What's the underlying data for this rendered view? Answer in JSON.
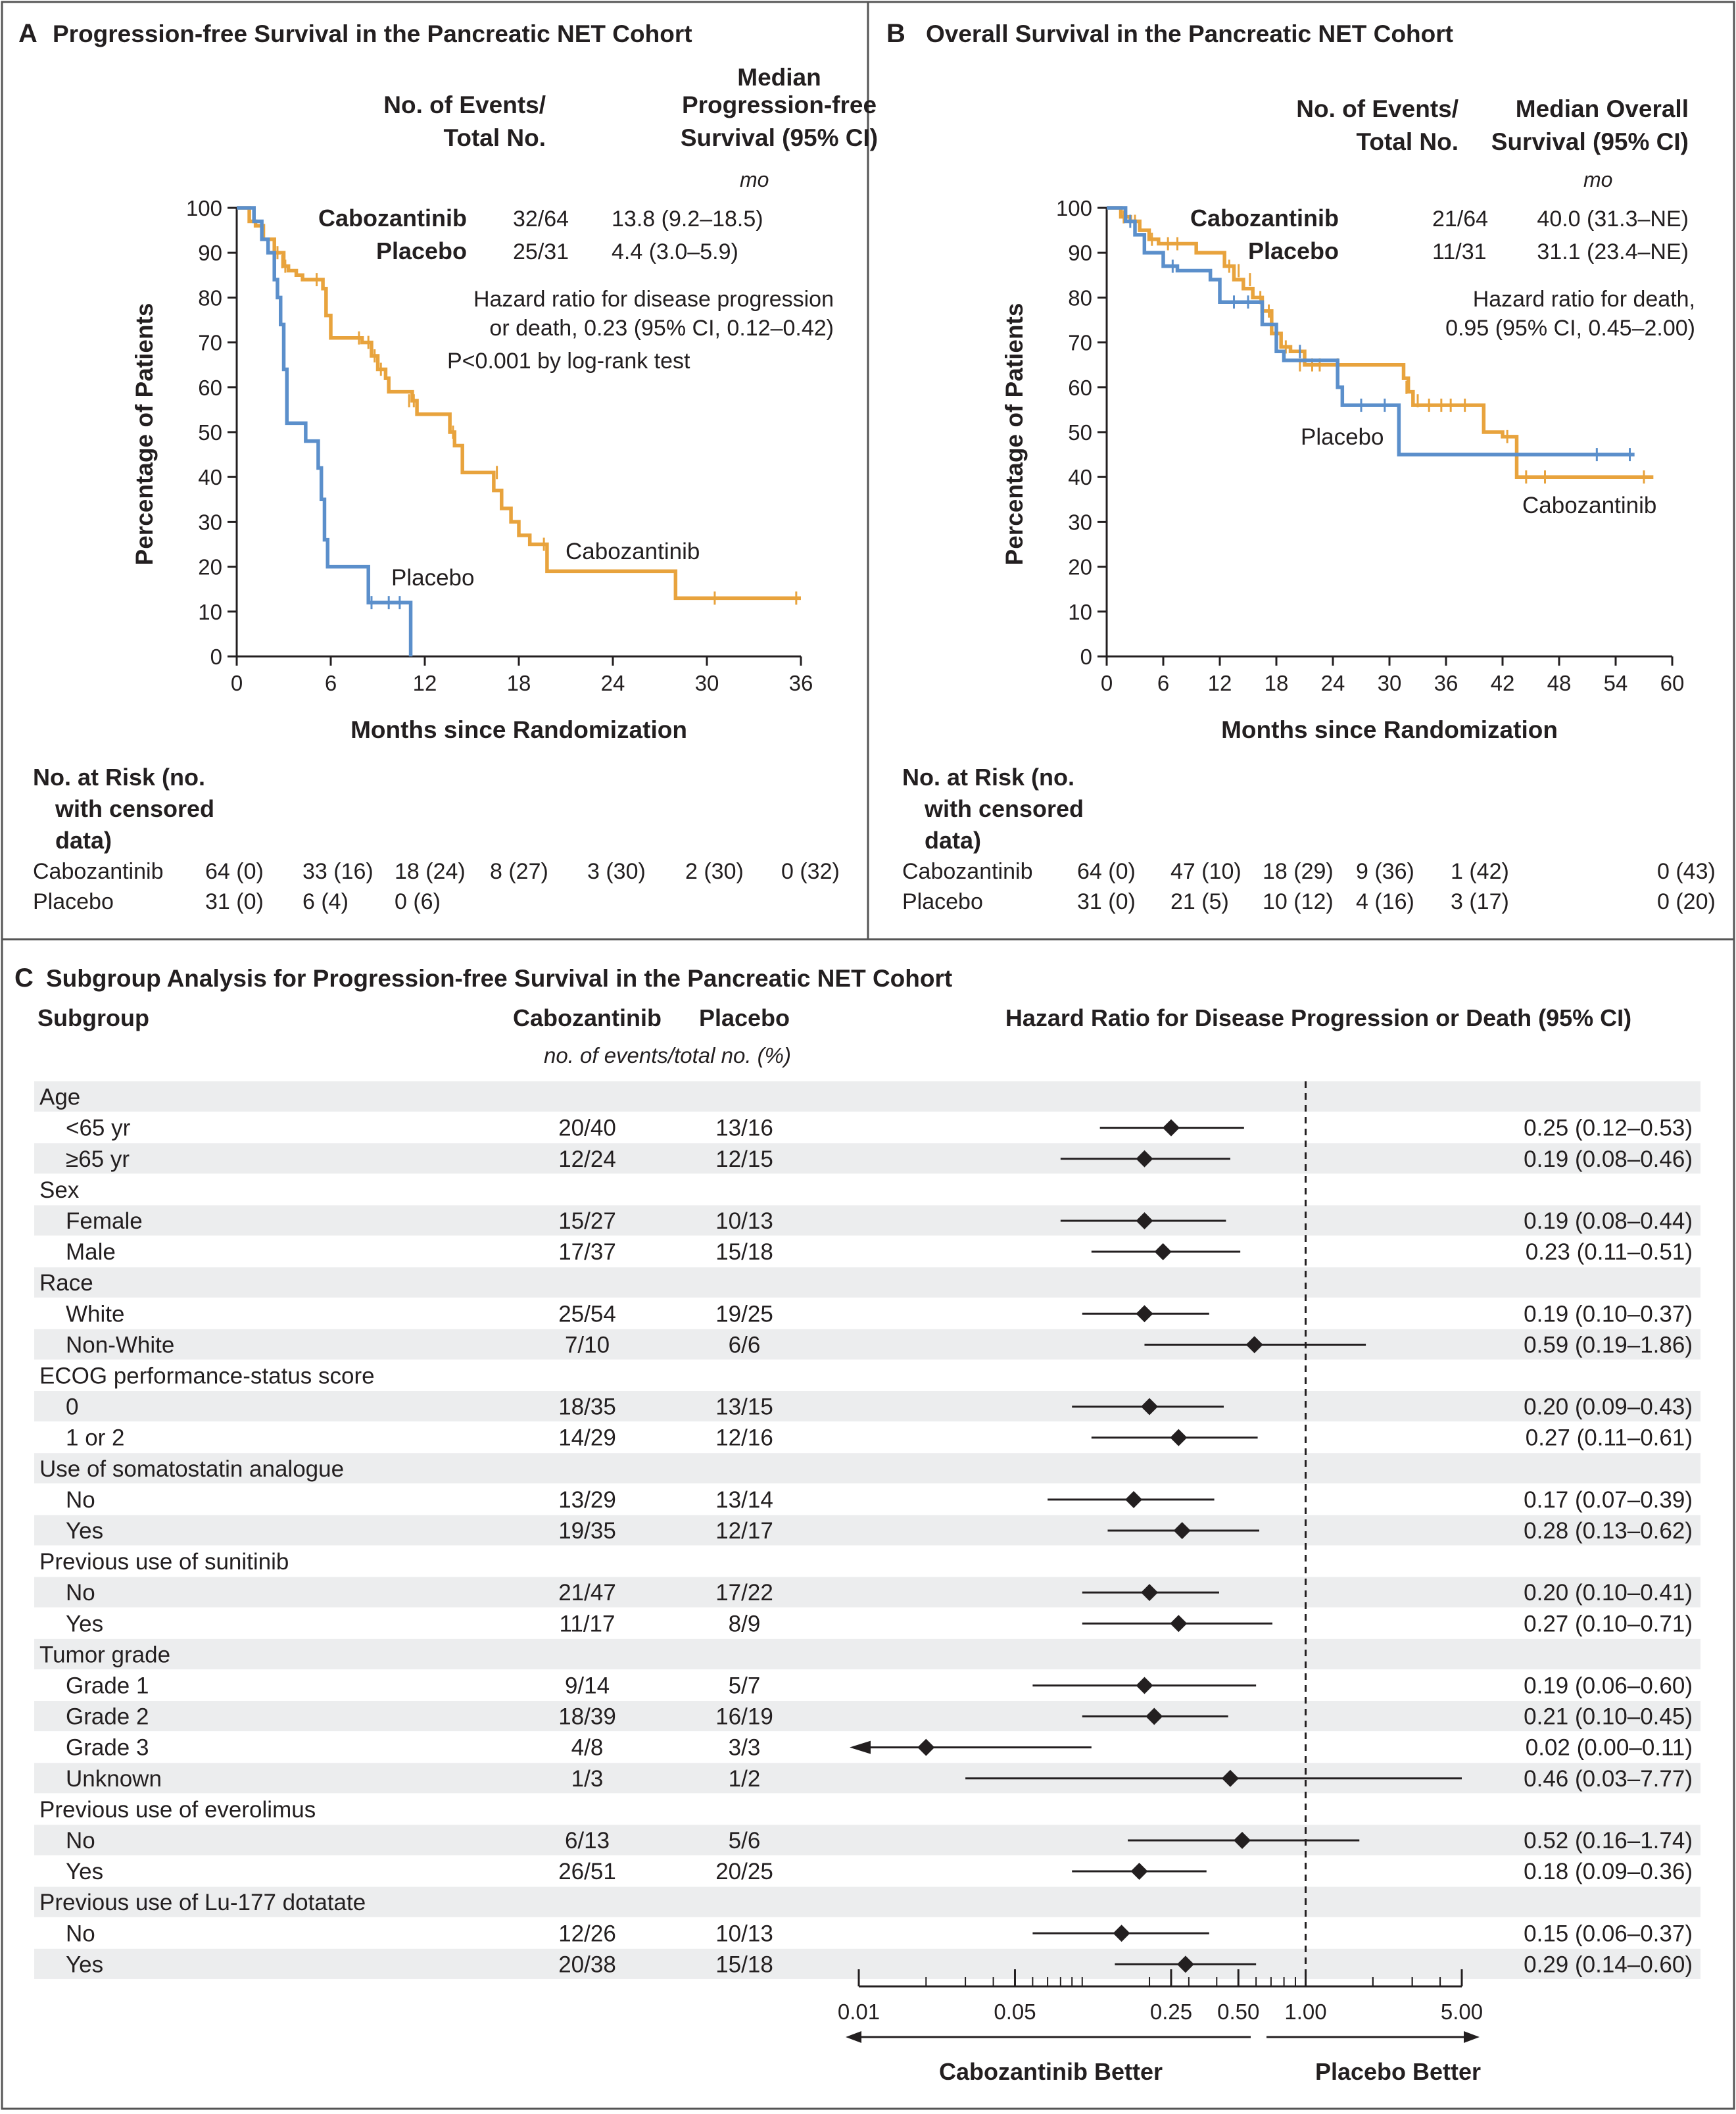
{
  "colors": {
    "cabozantinib": "#E8A33D",
    "placebo": "#5B8FCB",
    "ink": "#231F20",
    "stripe": "#ECEDEE",
    "frame": "#555555"
  },
  "panel_a": {
    "letter": "A",
    "title": "Progression-free Survival in the Pancreatic NET Cohort",
    "col_events": [
      "No. of Events/",
      "Total No."
    ],
    "col_median": [
      "Median",
      "Progression-free",
      "Survival (95% CI)"
    ],
    "unit": "mo",
    "rows": [
      {
        "name": "Cabozantinib",
        "events": "32/64",
        "median": "13.8 (9.2–18.5)"
      },
      {
        "name": "Placebo",
        "events": "25/31",
        "median": "4.4 (3.0–5.9)"
      }
    ],
    "hr_text": [
      "Hazard ratio for disease progression",
      "or death, 0.23 (95% CI, 0.12–0.42)",
      "P<0.001 by log-rank test"
    ],
    "ylabel": "Percentage of Patients",
    "xlabel": "Months since Randomization",
    "xticks": [
      "0",
      "6",
      "12",
      "18",
      "24",
      "30",
      "36"
    ],
    "yticks": [
      "0",
      "10",
      "20",
      "30",
      "40",
      "50",
      "60",
      "70",
      "80",
      "90",
      "100"
    ],
    "curve_label_cabo": "Cabozantinib",
    "curve_label_placebo": "Placebo",
    "risk_title": [
      "No. at Risk (no.",
      "with censored",
      "data)"
    ],
    "risk_rows": [
      {
        "name": "Cabozantinib",
        "values": [
          "64 (0)",
          "33 (16)",
          "18 (24)",
          "8 (27)",
          "3 (30)",
          "2 (30)",
          "0 (32)"
        ]
      },
      {
        "name": "Placebo",
        "values": [
          "31 (0)",
          "6 (4)",
          "0 (6)"
        ]
      }
    ]
  },
  "panel_b": {
    "letter": "B",
    "title": "Overall Survival in the Pancreatic NET Cohort",
    "col_events": [
      "No. of Events/",
      "Total No."
    ],
    "col_median": [
      "Median Overall",
      "Survival (95% CI)"
    ],
    "unit": "mo",
    "rows": [
      {
        "name": "Cabozantinib",
        "events": "21/64",
        "median": "40.0 (31.3–NE)"
      },
      {
        "name": "Placebo",
        "events": "11/31",
        "median": "31.1 (23.4–NE)"
      }
    ],
    "hr_text": [
      "Hazard ratio for death,",
      "0.95 (95% CI, 0.45–2.00)"
    ],
    "ylabel": "Percentage of Patients",
    "xlabel": "Months since Randomization",
    "xticks": [
      "0",
      "6",
      "12",
      "18",
      "24",
      "30",
      "36",
      "42",
      "48",
      "54",
      "60"
    ],
    "yticks": [
      "0",
      "10",
      "20",
      "30",
      "40",
      "50",
      "60",
      "70",
      "80",
      "90",
      "100"
    ],
    "curve_label_cabo": "Cabozantinib",
    "curve_label_placebo": "Placebo",
    "risk_title": [
      "No. at Risk (no.",
      "with censored",
      "data)"
    ],
    "risk_rows": [
      {
        "name": "Cabozantinib",
        "values": [
          "64 (0)",
          "47 (10)",
          "18 (29)",
          "9 (36)",
          "1 (42)",
          "0 (43)"
        ]
      },
      {
        "name": "Placebo",
        "values": [
          "31 (0)",
          "21 (5)",
          "10 (12)",
          "4 (16)",
          "3 (17)",
          "0 (20)"
        ]
      }
    ]
  },
  "panel_c": {
    "letter": "C",
    "title": "Subgroup Analysis for Progression-free Survival in the Pancreatic NET Cohort",
    "col_subgroup": "Subgroup",
    "col_cabo": "Cabozantinib",
    "col_placebo": "Placebo",
    "col_sub": "no. of events/total no. (%)",
    "col_hr": "Hazard Ratio for Disease Progression or Death (95% CI)",
    "axis_ticks": [
      "0.01",
      "0.05",
      "0.25",
      "0.50",
      "1.00",
      "5.00"
    ],
    "better_left": "Cabozantinib Better",
    "better_right": "Placebo Better"
  },
  "chart_data": [
    {
      "type": "line",
      "title": "Progression-free Survival in the Pancreatic NET Cohort",
      "xlabel": "Months since Randomization",
      "ylabel": "Percentage of Patients",
      "xlim": [
        0,
        36
      ],
      "ylim": [
        0,
        100
      ],
      "step": true,
      "series": [
        {
          "name": "Cabozantinib",
          "x": [
            0,
            0.8,
            1.2,
            1.7,
            2.4,
            3.0,
            3.3,
            3.8,
            4.2,
            5.5,
            5.7,
            6.0,
            8.0,
            8.6,
            9.0,
            9.5,
            9.7,
            10.0,
            11.2,
            11.5,
            12.3,
            13.6,
            13.9,
            14.4,
            16.4,
            16.9,
            17.5,
            18.0,
            18.7,
            19.6,
            19.8,
            28.0,
            36.0
          ],
          "y": [
            100,
            97,
            96,
            93,
            90,
            87,
            86,
            85,
            84,
            82,
            76,
            71,
            70,
            67,
            64,
            62,
            59,
            59,
            57,
            54,
            54,
            50,
            47,
            41,
            37,
            33,
            30,
            27,
            25,
            25,
            19,
            13,
            13
          ],
          "censor_x": [
            2.6,
            2.9,
            3.1,
            5.1,
            7.8,
            8.4,
            8.8,
            9.2,
            11.0,
            11.3,
            13.8,
            16.6,
            19.6,
            30.5,
            35.7
          ],
          "censor_y": [
            90,
            88,
            87,
            84,
            71,
            70,
            67,
            64,
            57,
            57,
            50,
            41,
            25,
            13,
            13
          ]
        },
        {
          "name": "Placebo",
          "x": [
            0,
            1.1,
            1.6,
            2.0,
            2.4,
            2.6,
            2.8,
            3.0,
            3.2,
            4.4,
            5.2,
            5.4,
            5.6,
            5.8,
            6.1,
            8.4,
            11.1,
            11.1
          ],
          "y": [
            100,
            97,
            93,
            90,
            84,
            80,
            74,
            64,
            52,
            48,
            42,
            35,
            26,
            20,
            20,
            12,
            12,
            0
          ],
          "censor_x": [
            3.0,
            8.6,
            9.7,
            10.4
          ],
          "censor_y": [
            67,
            12,
            12,
            12
          ]
        }
      ],
      "median_mo": {
        "Cabozantinib": "13.8 (9.2–18.5)",
        "Placebo": "4.4 (3.0–5.9)"
      },
      "hazard_ratio": "0.23 (95% CI, 0.12–0.42)"
    },
    {
      "type": "line",
      "title": "Overall Survival in the Pancreatic NET Cohort",
      "xlabel": "Months since Randomization",
      "ylabel": "Percentage of Patients",
      "xlim": [
        0,
        60
      ],
      "ylim": [
        0,
        100
      ],
      "step": true,
      "series": [
        {
          "name": "Cabozantinib",
          "x": [
            0,
            1.5,
            2.5,
            3.5,
            4.5,
            5.5,
            9.5,
            12.5,
            13.5,
            14.5,
            15.5,
            16.5,
            17.5,
            18.5,
            19.5,
            21.0,
            26.0,
            31.5,
            32.0,
            32.5,
            33.5,
            40.0,
            42.0,
            43.5,
            58.0
          ],
          "y": [
            100,
            98,
            97,
            95,
            93,
            92,
            90,
            87,
            84,
            82,
            80,
            77,
            72,
            69,
            68,
            65,
            65,
            62,
            59,
            56,
            56,
            50,
            49,
            40,
            40
          ],
          "censor_x": [
            1.8,
            3.0,
            4.8,
            6.5,
            7.5,
            13.0,
            14.0,
            15.2,
            16.3,
            17.2,
            18.0,
            19.0,
            20.5,
            21.8,
            22.6,
            24.5,
            31.8,
            33.0,
            34.2,
            35.5,
            36.5,
            38.0,
            42.5,
            44.5,
            46.5,
            57.0
          ],
          "censor_y": [
            98,
            97,
            93,
            92,
            92,
            87,
            86,
            84,
            80,
            77,
            72,
            69,
            65,
            65,
            65,
            65,
            60,
            57,
            56,
            56,
            56,
            56,
            49,
            40,
            40,
            40
          ]
        },
        {
          "name": "Placebo",
          "x": [
            0,
            2.0,
            3.0,
            4.0,
            6.0,
            7.5,
            11.0,
            12.0,
            16.5,
            18.0,
            18.8,
            24.5,
            25.0,
            31.0,
            56.0
          ],
          "y": [
            100,
            97,
            94,
            90,
            87,
            86,
            84,
            79,
            74,
            68,
            66,
            60,
            56,
            45,
            45
          ],
          "censor_x": [
            2.5,
            7.0,
            13.5,
            15.0,
            20.5,
            27.0,
            29.5,
            52.0,
            55.5
          ],
          "censor_y": [
            97,
            87,
            79,
            79,
            68,
            56,
            56,
            45,
            45
          ]
        }
      ],
      "median_mo": {
        "Cabozantinib": "40.0 (31.3–NE)",
        "Placebo": "31.1 (23.4–NE)"
      },
      "hazard_ratio": "0.95 (95% CI, 0.45–2.00)"
    },
    {
      "type": "forest",
      "title": "Subgroup Analysis for Progression-free Survival in the Pancreatic NET Cohort",
      "xlabel": "Hazard Ratio for Disease Progression or Death (95% CI)",
      "x_scale": "log",
      "xlim": [
        0.01,
        5.0
      ],
      "reference": 1.0,
      "rows": [
        {
          "label": "Age",
          "header": true
        },
        {
          "label": "<65 yr",
          "cabo": "20/40",
          "placebo": "13/16",
          "hr": 0.25,
          "lo": 0.12,
          "hi": 0.53,
          "text": "0.25 (0.12–0.53)"
        },
        {
          "label": "≥65 yr",
          "cabo": "12/24",
          "placebo": "12/15",
          "hr": 0.19,
          "lo": 0.08,
          "hi": 0.46,
          "text": "0.19 (0.08–0.46)"
        },
        {
          "label": "Sex",
          "header": true
        },
        {
          "label": "Female",
          "cabo": "15/27",
          "placebo": "10/13",
          "hr": 0.19,
          "lo": 0.08,
          "hi": 0.44,
          "text": "0.19 (0.08–0.44)"
        },
        {
          "label": "Male",
          "cabo": "17/37",
          "placebo": "15/18",
          "hr": 0.23,
          "lo": 0.11,
          "hi": 0.51,
          "text": "0.23 (0.11–0.51)"
        },
        {
          "label": "Race",
          "header": true
        },
        {
          "label": "White",
          "cabo": "25/54",
          "placebo": "19/25",
          "hr": 0.19,
          "lo": 0.1,
          "hi": 0.37,
          "text": "0.19 (0.10–0.37)"
        },
        {
          "label": "Non-White",
          "cabo": "7/10",
          "placebo": "6/6",
          "hr": 0.59,
          "lo": 0.19,
          "hi": 1.86,
          "text": "0.59 (0.19–1.86)"
        },
        {
          "label": "ECOG performance-status score",
          "header": true
        },
        {
          "label": "0",
          "cabo": "18/35",
          "placebo": "13/15",
          "hr": 0.2,
          "lo": 0.09,
          "hi": 0.43,
          "text": "0.20 (0.09–0.43)"
        },
        {
          "label": "1 or 2",
          "cabo": "14/29",
          "placebo": "12/16",
          "hr": 0.27,
          "lo": 0.11,
          "hi": 0.61,
          "text": "0.27 (0.11–0.61)"
        },
        {
          "label": "Use of somatostatin analogue",
          "header": true
        },
        {
          "label": "No",
          "cabo": "13/29",
          "placebo": "13/14",
          "hr": 0.17,
          "lo": 0.07,
          "hi": 0.39,
          "text": "0.17 (0.07–0.39)"
        },
        {
          "label": "Yes",
          "cabo": "19/35",
          "placebo": "12/17",
          "hr": 0.28,
          "lo": 0.13,
          "hi": 0.62,
          "text": "0.28 (0.13–0.62)"
        },
        {
          "label": "Previous use of sunitinib",
          "header": true
        },
        {
          "label": "No",
          "cabo": "21/47",
          "placebo": "17/22",
          "hr": 0.2,
          "lo": 0.1,
          "hi": 0.41,
          "text": "0.20 (0.10–0.41)"
        },
        {
          "label": "Yes",
          "cabo": "11/17",
          "placebo": "8/9",
          "hr": 0.27,
          "lo": 0.1,
          "hi": 0.71,
          "text": "0.27 (0.10–0.71)"
        },
        {
          "label": "Tumor grade",
          "header": true
        },
        {
          "label": "Grade 1",
          "cabo": "9/14",
          "placebo": "5/7",
          "hr": 0.19,
          "lo": 0.06,
          "hi": 0.6,
          "text": "0.19 (0.06–0.60)"
        },
        {
          "label": "Grade 2",
          "cabo": "18/39",
          "placebo": "16/19",
          "hr": 0.21,
          "lo": 0.1,
          "hi": 0.45,
          "text": "0.21 (0.10–0.45)"
        },
        {
          "label": "Grade 3",
          "cabo": "4/8",
          "placebo": "3/3",
          "hr": 0.02,
          "lo": 0.0,
          "hi": 0.11,
          "text": "0.02 (0.00–0.11)"
        },
        {
          "label": "Unknown",
          "cabo": "1/3",
          "placebo": "1/2",
          "hr": 0.46,
          "lo": 0.03,
          "hi": 7.77,
          "text": "0.46 (0.03–7.77)"
        },
        {
          "label": "Previous use of everolimus",
          "header": true
        },
        {
          "label": "No",
          "cabo": "6/13",
          "placebo": "5/6",
          "hr": 0.52,
          "lo": 0.16,
          "hi": 1.74,
          "text": "0.52 (0.16–1.74)"
        },
        {
          "label": "Yes",
          "cabo": "26/51",
          "placebo": "20/25",
          "hr": 0.18,
          "lo": 0.09,
          "hi": 0.36,
          "text": "0.18 (0.09–0.36)"
        },
        {
          "label": "Previous use of Lu-177 dotatate",
          "header": true
        },
        {
          "label": "No",
          "cabo": "12/26",
          "placebo": "10/13",
          "hr": 0.15,
          "lo": 0.06,
          "hi": 0.37,
          "text": "0.15 (0.06–0.37)"
        },
        {
          "label": "Yes",
          "cabo": "20/38",
          "placebo": "15/18",
          "hr": 0.29,
          "lo": 0.14,
          "hi": 0.6,
          "text": "0.29 (0.14–0.60)"
        }
      ]
    }
  ]
}
